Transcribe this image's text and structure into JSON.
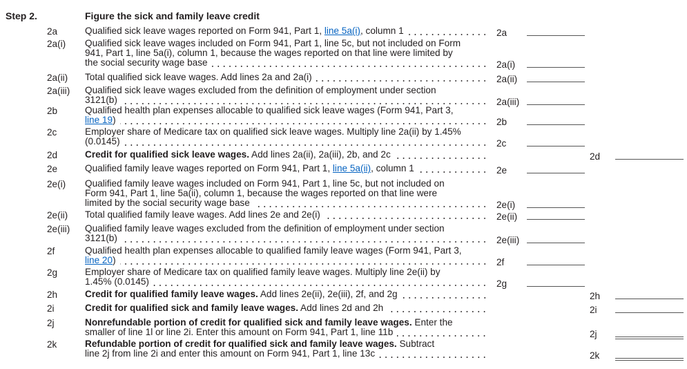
{
  "step": {
    "label": "Step 2.",
    "title": "Figure the sick and family leave credit"
  },
  "rows": [
    {
      "num": "2a",
      "col": 1,
      "label": "2a",
      "lines": [
        [
          {
            "t": "Qualified sick leave wages reported on Form 941, Part 1, "
          },
          {
            "t": "line 5a(i)",
            "link": true
          },
          {
            "t": ", column 1"
          }
        ]
      ]
    },
    {
      "num": "2a(i)",
      "col": 1,
      "label": "2a(i)",
      "lines": [
        [
          {
            "t": "Qualified sick leave wages included on Form 941, Part 1, line 5c, but not included on Form"
          }
        ],
        [
          {
            "t": "941, Part 1, line 5a(i), column 1, because the wages reported on that line were limited by"
          }
        ],
        [
          {
            "t": "the social security wage base"
          }
        ]
      ]
    },
    {
      "num": "2a(ii)",
      "col": 1,
      "label": "2a(ii)",
      "lines": [
        [
          {
            "t": "Total qualified sick leave wages. Add lines 2a and 2a(i)"
          }
        ]
      ]
    },
    {
      "num": "2a(iii)",
      "col": 1,
      "label": "2a(iii)",
      "lines": [
        [
          {
            "t": "Qualified sick leave wages excluded from the definition of employment under section"
          }
        ],
        [
          {
            "t": "3121(b)"
          }
        ]
      ]
    },
    {
      "num": "2b",
      "col": 1,
      "label": "2b",
      "lines": [
        [
          {
            "t": "Qualified health plan expenses allocable to qualified sick leave wages (Form 941, Part 3,"
          }
        ],
        [
          {
            "t": "line 19",
            "link": true
          },
          {
            "t": ")"
          }
        ]
      ]
    },
    {
      "num": "2c",
      "col": 1,
      "label": "2c",
      "lines": [
        [
          {
            "t": "Employer share of Medicare tax on qualified sick leave wages. Multiply line 2a(ii) by 1.45%"
          }
        ],
        [
          {
            "t": "(0.0145)"
          }
        ]
      ]
    },
    {
      "num": "2d",
      "col": 2,
      "label": "2d",
      "lines": [
        [
          {
            "t": "Credit for qualified sick leave wages.",
            "bold": true
          },
          {
            "t": " Add lines 2a(ii), 2a(iii), 2b, and 2c"
          }
        ]
      ]
    },
    {
      "num": "2e",
      "col": 1,
      "label": "2e",
      "lines": [
        [
          {
            "t": "Qualified family leave wages reported on Form 941, Part 1, "
          },
          {
            "t": "line 5a(ii)",
            "link": true
          },
          {
            "t": ", column 1"
          }
        ]
      ]
    },
    {
      "num": "2e(i)",
      "col": 1,
      "label": "2e(i)",
      "lines": [
        [
          {
            "t": "Qualified family leave wages included on Form 941, Part 1, line 5c, but not included on"
          }
        ],
        [
          {
            "t": "Form 941, Part 1, line 5a(ii), column 1, because the wages reported on that line were"
          }
        ],
        [
          {
            "t": "limited by the social security wage base"
          }
        ]
      ]
    },
    {
      "num": "2e(ii)",
      "col": 1,
      "label": "2e(ii)",
      "lines": [
        [
          {
            "t": "Total qualified family leave wages. Add lines 2e and 2e(i)"
          }
        ]
      ]
    },
    {
      "num": "2e(iii)",
      "col": 1,
      "label": "2e(iii)",
      "lines": [
        [
          {
            "t": "Qualified family leave wages excluded from the definition of employment under section"
          }
        ],
        [
          {
            "t": "3121(b)"
          }
        ]
      ]
    },
    {
      "num": "2f",
      "col": 1,
      "label": "2f",
      "lines": [
        [
          {
            "t": "Qualified health plan expenses allocable to qualified family leave wages (Form 941, Part 3,"
          }
        ],
        [
          {
            "t": "line 20",
            "link": true
          },
          {
            "t": ")"
          }
        ]
      ]
    },
    {
      "num": "2g",
      "col": 1,
      "label": "2g",
      "lines": [
        [
          {
            "t": "Employer share of Medicare tax on qualified family leave wages. Multiply line 2e(ii) by"
          }
        ],
        [
          {
            "t": "1.45% (0.0145)"
          }
        ]
      ]
    },
    {
      "num": "2h",
      "col": 2,
      "label": "2h",
      "lines": [
        [
          {
            "t": "Credit for qualified family leave wages.",
            "bold": true
          },
          {
            "t": " Add lines 2e(ii), 2e(iii), 2f, and 2g"
          }
        ]
      ]
    },
    {
      "num": "2i",
      "col": 2,
      "label": "2i",
      "lines": [
        [
          {
            "t": "Credit for qualified sick and family leave wages.",
            "bold": true
          },
          {
            "t": " Add lines 2d and 2h"
          }
        ]
      ]
    },
    {
      "num": "2j",
      "col": 2,
      "label": "2j",
      "double": true,
      "lines": [
        [
          {
            "t": "Nonrefundable portion of credit for qualified sick and family leave wages.",
            "bold": true
          },
          {
            "t": " Enter the"
          }
        ],
        [
          {
            "t": "smaller of line 1l or line 2i. Enter this amount on Form 941, Part 1, line 11b"
          }
        ]
      ]
    },
    {
      "num": "2k",
      "col": 2,
      "label": "2k",
      "double": true,
      "lines": [
        [
          {
            "t": "Refundable portion of credit for qualified sick and family leave wages.",
            "bold": true
          },
          {
            "t": " Subtract"
          }
        ],
        [
          {
            "t": "line 2j from line 2i and enter this amount on Form 941, Part 1, line 13c"
          }
        ]
      ]
    }
  ]
}
